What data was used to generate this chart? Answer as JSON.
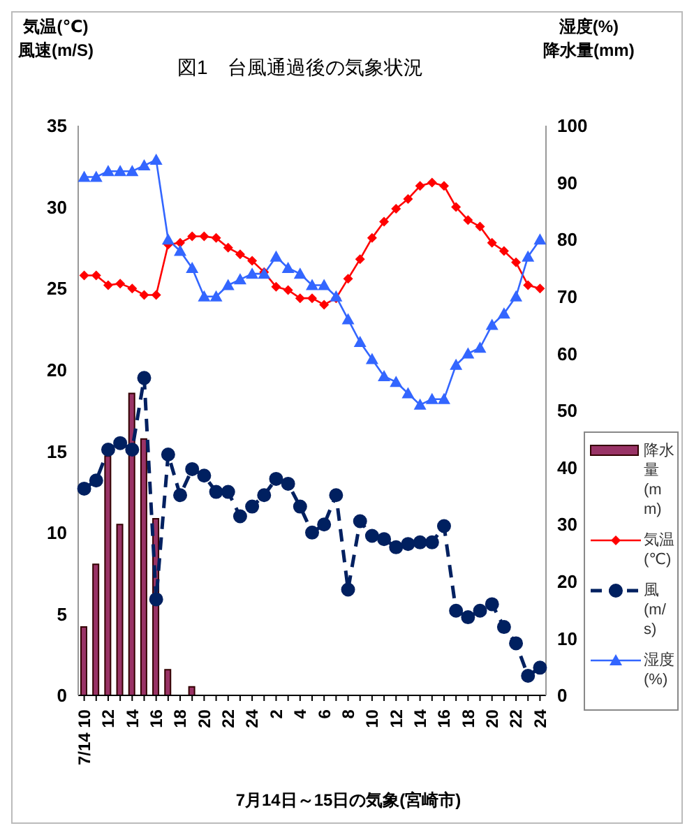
{
  "chart_data": {
    "type": "line",
    "title": "図1　台風通過後の気象状況",
    "xlabel": "7月14日～15日の気象(宮崎市)",
    "ylabel": "気温(℃)\n風速(m/S)",
    "y2label": "湿度(%)\n降水量(mm)",
    "categories": [
      "7/14 10",
      null,
      "12",
      null,
      "14",
      null,
      "16",
      null,
      "18",
      null,
      "20",
      null,
      "22",
      null,
      "24",
      null,
      "2",
      null,
      "4",
      null,
      "6",
      null,
      "8",
      null,
      "10",
      null,
      "12",
      null,
      "14",
      null,
      "16",
      null,
      "18",
      null,
      "20",
      null,
      "22",
      null,
      "24"
    ],
    "series": [
      {
        "name": "降水量(mm)",
        "type": "bar",
        "axis": "y2",
        "color": "#993366",
        "values": [
          12,
          23,
          42,
          30,
          53,
          45,
          31,
          4.5,
          0,
          1.5,
          0,
          0,
          0,
          0,
          0,
          0,
          0,
          0,
          0,
          0,
          0,
          0,
          0,
          0,
          0,
          0,
          0,
          0,
          0,
          0,
          0,
          0,
          0,
          0,
          0,
          0,
          0,
          0,
          0
        ]
      },
      {
        "name": "気温(℃)",
        "color": "#ff0000",
        "marker": "diamond",
        "values": [
          25.8,
          25.8,
          25.2,
          25.3,
          25.0,
          24.6,
          24.6,
          27.7,
          27.8,
          28.2,
          28.2,
          28.1,
          27.5,
          27.1,
          26.7,
          26.0,
          25.1,
          24.9,
          24.4,
          24.4,
          24.0,
          24.4,
          25.6,
          26.8,
          28.1,
          29.1,
          29.9,
          30.5,
          31.3,
          31.5,
          31.3,
          30.0,
          29.2,
          28.8,
          27.8,
          27.3,
          26.6,
          25.2,
          25.0
        ]
      },
      {
        "name": "風(m/s)",
        "color": "#002060",
        "marker": "circle",
        "line_style": "dashed",
        "values": [
          12.7,
          13.2,
          15.1,
          15.5,
          15.1,
          19.5,
          5.9,
          14.8,
          12.3,
          13.9,
          13.5,
          12.5,
          12.5,
          11.0,
          11.6,
          12.3,
          13.3,
          13.0,
          11.6,
          10.0,
          10.5,
          12.3,
          6.5,
          10.7,
          9.8,
          9.6,
          9.1,
          9.3,
          9.4,
          9.4,
          10.4,
          5.2,
          4.8,
          5.2,
          5.6,
          4.2,
          3.2,
          1.2,
          1.7
        ]
      },
      {
        "name": "湿度(%)",
        "axis": "y2",
        "color": "#3366ff",
        "marker": "triangle",
        "values": [
          91,
          91,
          92,
          92,
          92,
          93,
          94,
          80,
          78,
          75,
          70,
          70,
          72,
          73,
          74,
          74,
          77,
          75,
          74,
          72,
          72,
          70,
          66,
          62,
          59,
          56,
          55,
          53,
          51,
          52,
          52,
          58,
          60,
          61,
          65,
          67,
          70,
          77,
          80
        ]
      }
    ],
    "ylim": [
      0,
      35
    ],
    "yticks": [
      0,
      5,
      10,
      15,
      20,
      25,
      30,
      35
    ],
    "y2lim": [
      0,
      100
    ],
    "y2ticks": [
      0,
      10,
      20,
      30,
      40,
      50,
      60,
      70,
      80,
      90,
      100
    ],
    "grid": false,
    "legend": "right"
  }
}
